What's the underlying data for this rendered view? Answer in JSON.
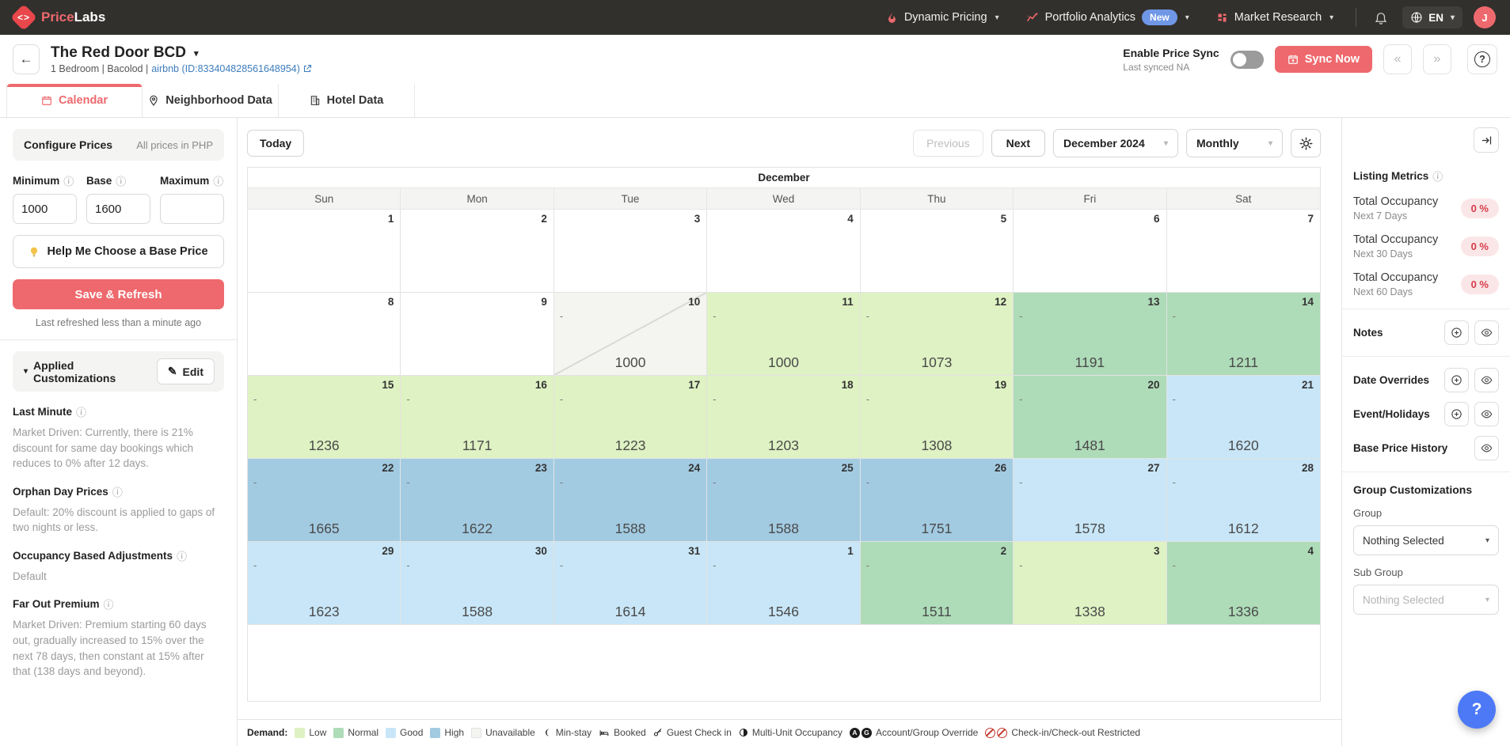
{
  "colors": {
    "accent": "#ee696d",
    "accent_logo": "#e8474b",
    "badge_new": "#6f97e6",
    "link": "#3e7dbd",
    "demand_low": "#def2c3",
    "demand_normal": "#aedbb8",
    "demand_good": "#c8e6f7",
    "demand_high": "#a2cbe2",
    "unavailable": "#f4f4f1",
    "pill_bg": "#fbe6e7",
    "pill_text": "#d63c4a"
  },
  "navbar": {
    "brand_primary": "Price",
    "brand_secondary": "Labs",
    "items": [
      {
        "label": "Dynamic Pricing"
      },
      {
        "label": "Portfolio Analytics",
        "badge": "New"
      },
      {
        "label": "Market Research"
      }
    ],
    "language": "EN",
    "avatar_initial": "J"
  },
  "header": {
    "title": "The Red Door BCD",
    "subtitle_prefix": "1 Bedroom | Bacolod |",
    "subtitle_link": "airbnb (ID:833404828561648954)",
    "price_sync_label": "Enable Price Sync",
    "last_synced": "Last synced NA",
    "sync_now_label": "Sync Now",
    "prev_glyph": "«",
    "next_glyph": "»",
    "help_glyph": "?"
  },
  "tabs": [
    {
      "label": "Calendar",
      "active": true
    },
    {
      "label": "Neighborhood Data",
      "active": false
    },
    {
      "label": "Hotel Data",
      "active": false
    }
  ],
  "sidebar": {
    "configure_title": "Configure Prices",
    "currency_note": "All prices in PHP",
    "min_label": "Minimum",
    "base_label": "Base",
    "max_label": "Maximum",
    "min_value": "1000",
    "base_value": "1600",
    "max_value": "",
    "help_base_price_label": "Help Me Choose a Base Price",
    "save_label": "Save & Refresh",
    "refresh_note": "Last refreshed less than a minute ago",
    "applied_title": "Applied Customizations",
    "edit_label": "Edit",
    "customizations": [
      {
        "heading": "Last Minute",
        "body": "Market Driven: Currently, there is 21% discount for same day bookings which reduces to 0% after 12 days."
      },
      {
        "heading": "Orphan Day Prices",
        "body": "Default: 20% discount is applied to gaps of two nights or less."
      },
      {
        "heading": "Occupancy Based Adjustments",
        "body": "Default"
      },
      {
        "heading": "Far Out Premium",
        "body": "Market Driven: Premium starting 60 days out, gradually increased to 15% over the next 78 days, then constant at 15% after that (138 days and beyond)."
      }
    ]
  },
  "toolbar": {
    "today_label": "Today",
    "previous_label": "Previous",
    "next_label": "Next",
    "month_select": "December 2024",
    "view_select": "Monthly"
  },
  "calendar": {
    "month_title": "December",
    "weekdays": [
      "Sun",
      "Mon",
      "Tue",
      "Wed",
      "Thu",
      "Fri",
      "Sat"
    ],
    "weeks": [
      [
        {
          "day": "1"
        },
        {
          "day": "2"
        },
        {
          "day": "3"
        },
        {
          "day": "4"
        },
        {
          "day": "5"
        },
        {
          "day": "6"
        },
        {
          "day": "7"
        }
      ],
      [
        {
          "day": "8"
        },
        {
          "day": "9"
        },
        {
          "day": "10",
          "price": "1000",
          "demand": "unavailable",
          "dash": true,
          "slash": true
        },
        {
          "day": "11",
          "price": "1000",
          "demand": "low",
          "dash": true
        },
        {
          "day": "12",
          "price": "1073",
          "demand": "low",
          "dash": true
        },
        {
          "day": "13",
          "price": "1191",
          "demand": "normal",
          "dash": true
        },
        {
          "day": "14",
          "price": "1211",
          "demand": "normal",
          "dash": true
        }
      ],
      [
        {
          "day": "15",
          "price": "1236",
          "demand": "low",
          "dash": true
        },
        {
          "day": "16",
          "price": "1171",
          "demand": "low",
          "dash": true
        },
        {
          "day": "17",
          "price": "1223",
          "demand": "low",
          "dash": true
        },
        {
          "day": "18",
          "price": "1203",
          "demand": "low",
          "dash": true
        },
        {
          "day": "19",
          "price": "1308",
          "demand": "low",
          "dash": true
        },
        {
          "day": "20",
          "price": "1481",
          "demand": "normal",
          "dash": true
        },
        {
          "day": "21",
          "price": "1620",
          "demand": "good",
          "dash": true
        }
      ],
      [
        {
          "day": "22",
          "price": "1665",
          "demand": "high",
          "dash": true
        },
        {
          "day": "23",
          "price": "1622",
          "demand": "high",
          "dash": true
        },
        {
          "day": "24",
          "price": "1588",
          "demand": "high",
          "dash": true
        },
        {
          "day": "25",
          "price": "1588",
          "demand": "high",
          "dash": true
        },
        {
          "day": "26",
          "price": "1751",
          "demand": "high",
          "dash": true
        },
        {
          "day": "27",
          "price": "1578",
          "demand": "good",
          "dash": true
        },
        {
          "day": "28",
          "price": "1612",
          "demand": "good",
          "dash": true
        }
      ],
      [
        {
          "day": "29",
          "price": "1623",
          "demand": "good",
          "dash": true
        },
        {
          "day": "30",
          "price": "1588",
          "demand": "good",
          "dash": true
        },
        {
          "day": "31",
          "price": "1614",
          "demand": "good",
          "dash": true
        },
        {
          "day": "1",
          "price": "1546",
          "demand": "good",
          "dash": true
        },
        {
          "day": "2",
          "price": "1511",
          "demand": "normal",
          "dash": true
        },
        {
          "day": "3",
          "price": "1338",
          "demand": "low",
          "dash": true
        },
        {
          "day": "4",
          "price": "1336",
          "demand": "normal",
          "dash": true
        }
      ]
    ]
  },
  "legend": {
    "demand_label": "Demand:",
    "levels": [
      {
        "label": "Low",
        "color_key": "demand_low"
      },
      {
        "label": "Normal",
        "color_key": "demand_normal"
      },
      {
        "label": "Good",
        "color_key": "demand_good"
      },
      {
        "label": "High",
        "color_key": "demand_high"
      },
      {
        "label": "Unavailable",
        "color_key": "unavailable"
      }
    ],
    "icons": [
      {
        "label": "Min-stay"
      },
      {
        "label": "Booked"
      },
      {
        "label": "Guest Check in"
      },
      {
        "label": "Multi-Unit Occupancy"
      },
      {
        "label": "Account/Group Override"
      },
      {
        "label": "Check-in/Check-out Restricted"
      }
    ],
    "override_letters": [
      "A",
      "G"
    ]
  },
  "right_panel": {
    "listing_metrics_title": "Listing Metrics",
    "metrics": [
      {
        "name": "Total Occupancy",
        "period": "Next 7 Days",
        "value": "0 %"
      },
      {
        "name": "Total Occupancy",
        "period": "Next 30 Days",
        "value": "0 %"
      },
      {
        "name": "Total Occupancy",
        "period": "Next 60 Days",
        "value": "0 %"
      }
    ],
    "notes_label": "Notes",
    "date_overrides_label": "Date Overrides",
    "events_label": "Event/Holidays",
    "base_price_history_label": "Base Price History",
    "group_customizations_title": "Group Customizations",
    "group_label": "Group",
    "group_value": "Nothing Selected",
    "subgroup_label": "Sub Group",
    "subgroup_value": "Nothing Selected",
    "float_help_glyph": "?"
  }
}
